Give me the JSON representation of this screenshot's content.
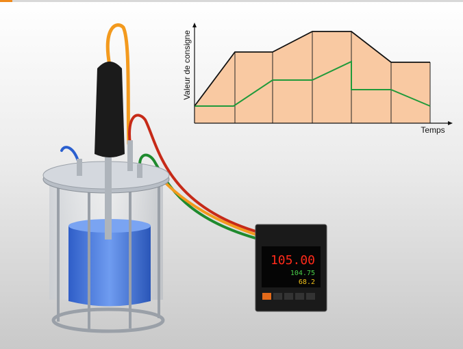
{
  "diagram": {
    "y_axis_label": "Valeur de consigne",
    "x_axis_label": "Temps"
  },
  "controller": {
    "display_1": "105.00",
    "display_2": "104.75",
    "display_3": "68.2"
  }
}
